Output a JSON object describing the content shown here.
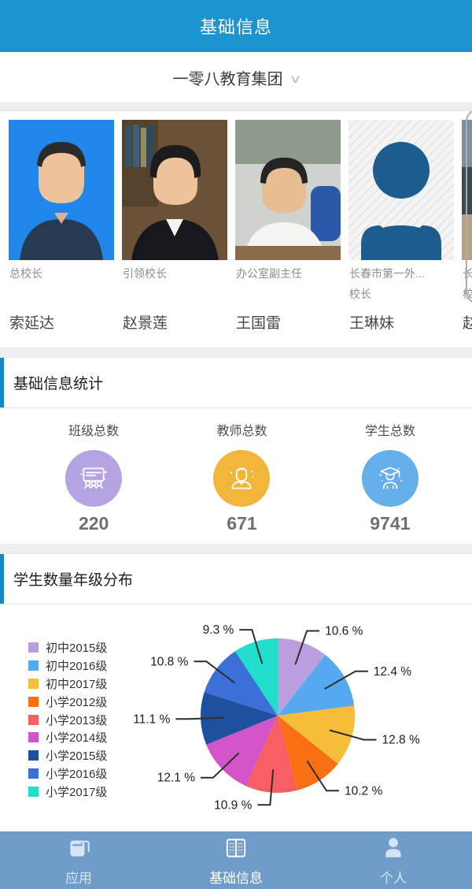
{
  "header": {
    "title": "基础信息"
  },
  "school_selector": {
    "name": "一零八教育集团",
    "chevron": "∨"
  },
  "staff": [
    {
      "title": "总校长",
      "title2": "",
      "name": "索延达",
      "photo": "man-blue-id-photo"
    },
    {
      "title": "引领校长",
      "title2": "",
      "name": "赵景莲",
      "photo": "woman-office-photo"
    },
    {
      "title": "办公室副主任",
      "title2": "",
      "name": "王国雷",
      "photo": "man-desk-photo"
    },
    {
      "title": "长春市第一外...",
      "title2": "校长",
      "name": "王琳妹",
      "photo": "avatar-placeholder"
    },
    {
      "title": "长",
      "title2": "校",
      "name": "赵",
      "photo": "partial-photo"
    }
  ],
  "stats_section": {
    "title": "基础信息统计",
    "stats": [
      {
        "label": "班级总数",
        "value": "220",
        "icon": "classroom-icon",
        "color": "#b4a3e0"
      },
      {
        "label": "教师总数",
        "value": "671",
        "icon": "teacher-icon",
        "color": "#f1b53a"
      },
      {
        "label": "学生总数",
        "value": "9741",
        "icon": "graduate-icon",
        "color": "#64aeea"
      }
    ]
  },
  "chart_section": {
    "title": "学生数量年级分布"
  },
  "chart_data": {
    "type": "pie",
    "title": "学生数量年级分布",
    "labels": [
      "初中2015级",
      "初中2016级",
      "初中2017级",
      "小学2012级",
      "小学2013级",
      "小学2014级",
      "小学2015级",
      "小学2016级",
      "小学2017级"
    ],
    "values_percent": [
      10.6,
      12.4,
      12.8,
      10.2,
      10.9,
      12.1,
      11.1,
      10.8,
      9.3
    ],
    "colors": [
      "#bb9edd",
      "#56a9f0",
      "#f5bd39",
      "#f97014",
      "#f75e62",
      "#d354c8",
      "#1f4f9f",
      "#3a70d8",
      "#22dfcc"
    ],
    "label_format": "{value} %",
    "start": "12-oclock-clockwise",
    "legend_position": "left"
  },
  "tabbar": {
    "items": [
      {
        "label": "应用",
        "icon": "apps-icon",
        "active": false
      },
      {
        "label": "基础信息",
        "icon": "book-icon",
        "active": true
      },
      {
        "label": "个人",
        "icon": "person-icon",
        "active": false
      }
    ]
  },
  "colors": {
    "header_blue": "#1d93d0",
    "accent_blue": "#1789ca",
    "tabbar_blue": "#6f9cc9",
    "leader_line": "#2e2e2e"
  }
}
